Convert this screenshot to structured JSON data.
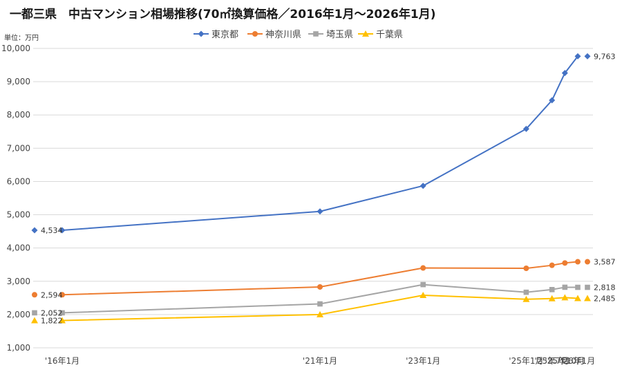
{
  "chart_data": {
    "type": "line",
    "title": "一都三県　中古マンション相場推移(70㎡換算価格／2016年1月～2026年1月)",
    "unit": "単位：万円",
    "x": [
      "'16年1月",
      "'21年1月",
      "'23年1月",
      "'25年1月",
      "'25年7月",
      "'25年10月",
      "'26年1月"
    ],
    "x_time_months": [
      0,
      60,
      84,
      108,
      114,
      117,
      120
    ],
    "ylim": [
      1000,
      10000
    ],
    "yticks": [
      1000,
      2000,
      3000,
      4000,
      5000,
      6000,
      7000,
      8000,
      9000,
      10000
    ],
    "ytick_labels": [
      "1,000",
      "2,000",
      "3,000",
      "4,000",
      "5,000",
      "6,000",
      "7,000",
      "8,000",
      "9,000",
      "10,000"
    ],
    "grid": true,
    "legend": "top-center",
    "series": [
      {
        "name": "東京都",
        "color": "#4472C4",
        "marker": "diamond",
        "values": [
          4534,
          5100,
          5870,
          7580,
          8440,
          9260,
          9763
        ],
        "start_label": "4,534",
        "end_label": "9,763"
      },
      {
        "name": "神奈川県",
        "color": "#ED7D31",
        "marker": "circle",
        "values": [
          2594,
          2830,
          3400,
          3390,
          3480,
          3550,
          3587
        ],
        "start_label": "2,594",
        "end_label": "3,587"
      },
      {
        "name": "埼玉県",
        "color": "#A5A5A5",
        "marker": "square",
        "values": [
          2052,
          2320,
          2900,
          2670,
          2750,
          2820,
          2818
        ],
        "start_label": "2,052",
        "end_label": "2,818"
      },
      {
        "name": "千葉県",
        "color": "#FFC000",
        "marker": "triangle",
        "values": [
          1822,
          2000,
          2580,
          2460,
          2480,
          2510,
          2485
        ],
        "start_label": "1,822",
        "end_label": "2,485"
      }
    ]
  }
}
